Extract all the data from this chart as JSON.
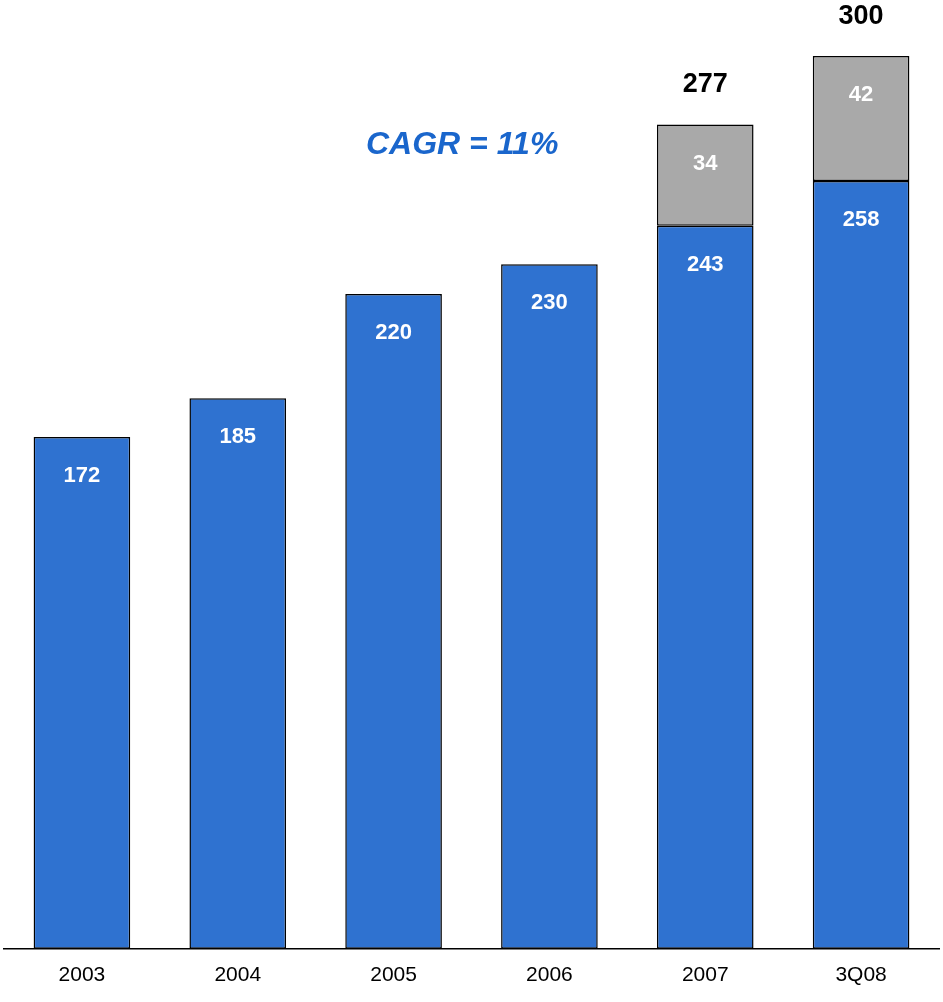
{
  "chart_data": {
    "type": "bar",
    "stacked": true,
    "categories": [
      "2003",
      "2004",
      "2005",
      "2006",
      "2007",
      "3Q08"
    ],
    "series": [
      {
        "color": "#2f72d0",
        "values": [
          172,
          185,
          220,
          230,
          243,
          258
        ]
      },
      {
        "color": "#a9a9a9",
        "values": [
          null,
          null,
          null,
          null,
          34,
          42
        ]
      }
    ],
    "data_labels": true,
    "totals": [
      null,
      null,
      null,
      null,
      "277",
      "300"
    ],
    "tick_labels": "x",
    "grid": false,
    "annotations": [
      "CAGR = 11%"
    ]
  }
}
